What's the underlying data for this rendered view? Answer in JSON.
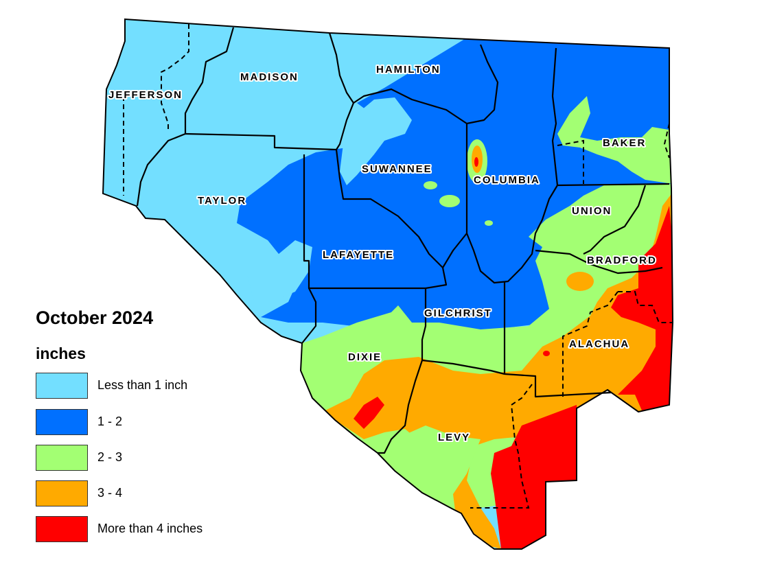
{
  "legend": {
    "title": "October 2024",
    "units": "inches",
    "items": [
      {
        "label": "Less than 1 inch",
        "color": "#73dfff"
      },
      {
        "label": "1 - 2",
        "color": "#0070ff"
      },
      {
        "label": "2 - 3",
        "color": "#a3ff73"
      },
      {
        "label": "3 - 4",
        "color": "#ffaa00"
      },
      {
        "label": "More than 4 inches",
        "color": "#ff0000"
      }
    ]
  },
  "counties": {
    "jefferson": "JEFFERSON",
    "madison": "MADISON",
    "hamilton": "HAMILTON",
    "suwannee": "SUWANNEE",
    "columbia": "COLUMBIA",
    "baker": "BAKER",
    "taylor": "TAYLOR",
    "union": "UNION",
    "lafayette": "LAFAYETTE",
    "bradford": "BRADFORD",
    "gilchrist": "GILCHRIST",
    "alachua": "ALACHUA",
    "dixie": "DIXIE",
    "levy": "LEVY"
  }
}
